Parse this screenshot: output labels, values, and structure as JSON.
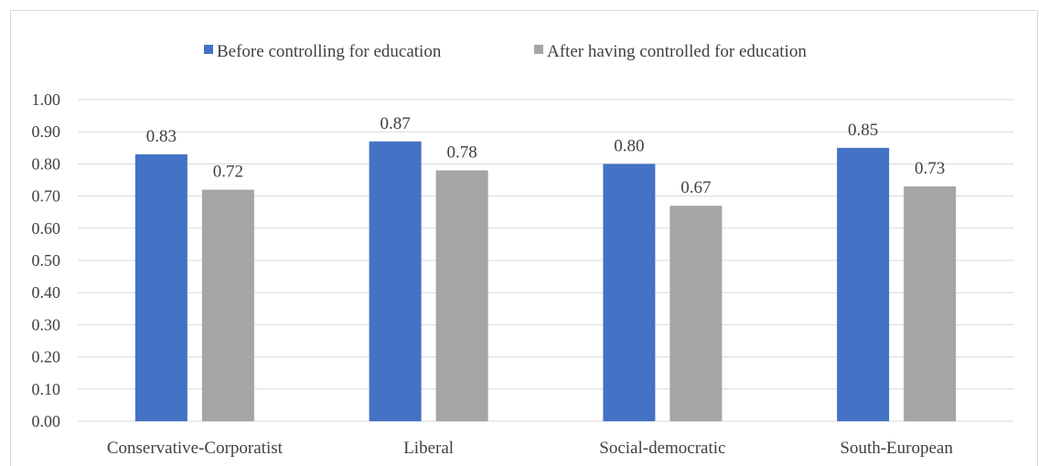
{
  "chart_data": {
    "type": "bar",
    "categories": [
      "Conservative-Corporatist",
      "Liberal",
      "Social-democratic",
      "South-European"
    ],
    "series": [
      {
        "name": "Before controlling for education",
        "color": "#4472c4",
        "values": [
          0.83,
          0.87,
          0.8,
          0.85
        ],
        "labels": [
          "0.83",
          "0.87",
          "0.80",
          "0.85"
        ]
      },
      {
        "name": "After having controlled for education",
        "color": "#a5a5a5",
        "values": [
          0.72,
          0.78,
          0.67,
          0.73
        ],
        "labels": [
          "0.72",
          "0.78",
          "0.67",
          "0.73"
        ]
      }
    ],
    "y_ticks": [
      "0.00",
      "0.10",
      "0.20",
      "0.30",
      "0.40",
      "0.50",
      "0.60",
      "0.70",
      "0.80",
      "0.90",
      "1.00"
    ],
    "ylim": [
      0,
      1
    ],
    "grid": true,
    "legend_position": "top-center",
    "title": "",
    "xlabel": "",
    "ylabel": ""
  }
}
